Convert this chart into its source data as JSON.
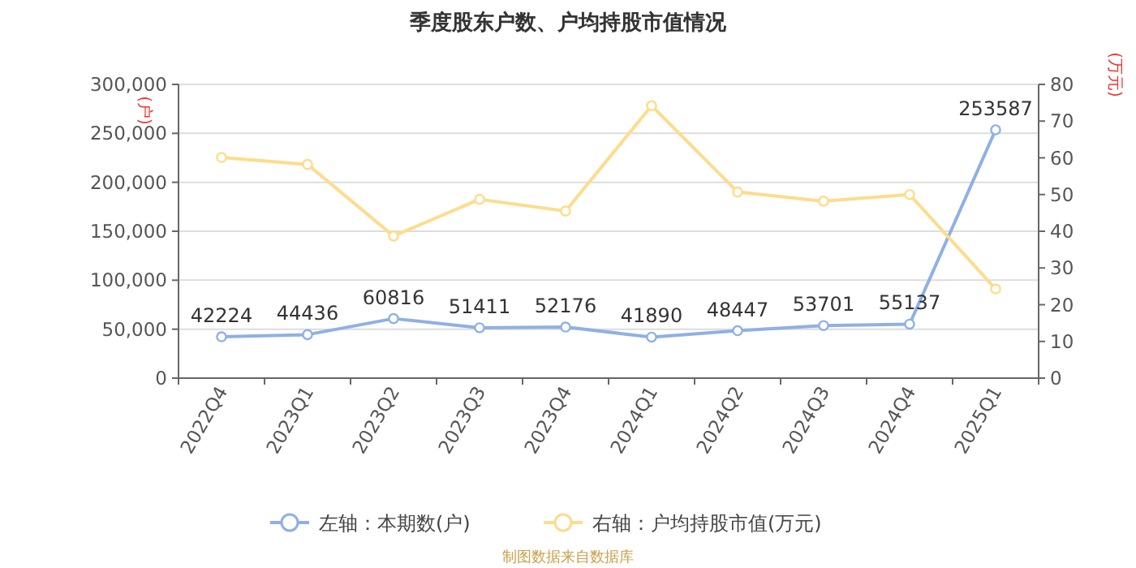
{
  "chart_data": {
    "type": "line",
    "title": "季度股东户数、户均持股市值情况",
    "categories": [
      "2022Q4",
      "2023Q1",
      "2023Q2",
      "2023Q3",
      "2023Q4",
      "2024Q1",
      "2024Q2",
      "2024Q3",
      "2024Q4",
      "2025Q1"
    ],
    "series": [
      {
        "name": "左轴：本期数(户)",
        "color": "#8fb0e6",
        "values": [
          42224,
          44436,
          60816,
          51411,
          52176,
          41890,
          48447,
          53701,
          55137,
          253587
        ],
        "value_labels": [
          "42224",
          "44436",
          "60816",
          "51411",
          "52176",
          "41890",
          "48447",
          "53701",
          "55137",
          "253587"
        ]
      },
      {
        "name": "右轴：户均持股市值(万元)",
        "color": "#fddc8c",
        "axis": "y2",
        "values": [
          60.1,
          58.2,
          38.7,
          48.7,
          45.5,
          74.2,
          50.7,
          48.2,
          50.0,
          24.3
        ]
      }
    ],
    "ylabel": "(户)",
    "y2label": "(万元)",
    "ylim": [
      0,
      300000
    ],
    "yticks": [
      {
        "value": 0,
        "label": "0"
      },
      {
        "value": 50000,
        "label": "50,000"
      },
      {
        "value": 100000,
        "label": "100,000"
      },
      {
        "value": 150000,
        "label": "150,000"
      },
      {
        "value": 200000,
        "label": "200,000"
      },
      {
        "value": 250000,
        "label": "250,000"
      },
      {
        "value": 300000,
        "label": "300,000"
      }
    ],
    "y2lim": [
      0,
      80
    ],
    "y2ticks": [
      0,
      10,
      20,
      30,
      40,
      50,
      60,
      70,
      80
    ],
    "grid": "y",
    "legend": "bottom",
    "marker": "circle",
    "line_style": "solid",
    "annotations": [
      "制图数据来自数据库"
    ]
  }
}
